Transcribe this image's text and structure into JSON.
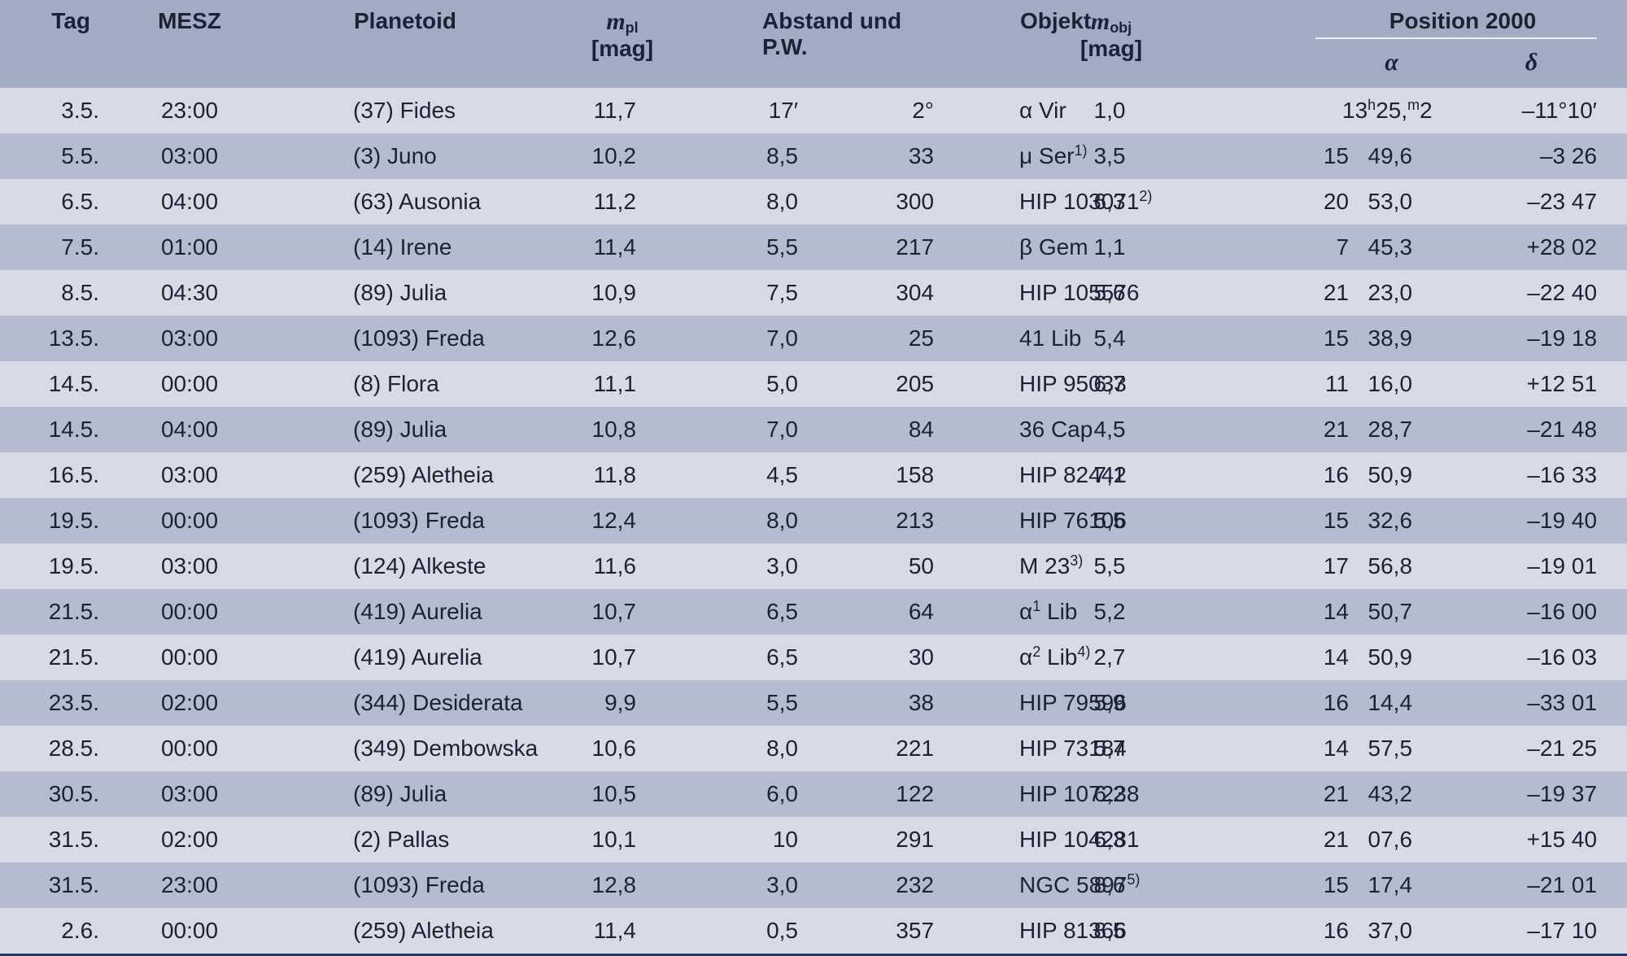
{
  "header": {
    "tag": "Tag",
    "mesz": "MESZ",
    "planetoid": "Planetoid",
    "m_pl_symbol": "m",
    "m_pl_sub": "pl",
    "m_pl_unit": "[mag]",
    "abstand": "Abstand und P.W.",
    "objekt": "Objekt",
    "m_obj_symbol": "m",
    "m_obj_sub": "obj",
    "m_obj_unit": "[mag]",
    "position": "Position 2000",
    "alpha": "α",
    "delta": "δ"
  },
  "rows": [
    {
      "tag": "3.5.",
      "mesz": "23:00",
      "planetoid": "(37) Fides",
      "m_pl": "11,7",
      "abstand": "17′",
      "pw": "2°",
      "objekt": "α Vir",
      "objekt_sup": "",
      "m_obj": "1,0",
      "ra_h": "13",
      "ra_m": "25,2",
      "ra_first": true,
      "dec": "–11°10′"
    },
    {
      "tag": "5.5.",
      "mesz": "03:00",
      "planetoid": "(3) Juno",
      "m_pl": "10,2",
      "abstand": "8,5",
      "pw": "33",
      "objekt": "μ Ser",
      "objekt_sup": "1)",
      "m_obj": "3,5",
      "ra_h": "15",
      "ra_m": "49,6",
      "dec": "–3 26"
    },
    {
      "tag": "6.5.",
      "mesz": "04:00",
      "planetoid": "(63) Ausonia",
      "m_pl": "11,2",
      "abstand": "8,0",
      "pw": "300",
      "objekt": "HIP 103071",
      "objekt_sup": "2)",
      "m_obj": "6,3",
      "ra_h": "20",
      "ra_m": "53,0",
      "dec": "–23 47"
    },
    {
      "tag": "7.5.",
      "mesz": "01:00",
      "planetoid": "(14) Irene",
      "m_pl": "11,4",
      "abstand": "5,5",
      "pw": "217",
      "objekt": "β Gem",
      "objekt_sup": "",
      "m_obj": "1,1",
      "ra_h": "7",
      "ra_m": "45,3",
      "dec": "+28 02"
    },
    {
      "tag": "8.5.",
      "mesz": "04:30",
      "planetoid": "(89) Julia",
      "m_pl": "10,9",
      "abstand": "7,5",
      "pw": "304",
      "objekt": "HIP 105576",
      "objekt_sup": "",
      "m_obj": "5,6",
      "ra_h": "21",
      "ra_m": "23,0",
      "dec": "–22 40"
    },
    {
      "tag": "13.5.",
      "mesz": "03:00",
      "planetoid": "(1093) Freda",
      "m_pl": "12,6",
      "abstand": "7,0",
      "pw": "25",
      "objekt": "41 Lib",
      "objekt_sup": "",
      "m_obj": "5,4",
      "ra_h": "15",
      "ra_m": "38,9",
      "dec": "–19 18"
    },
    {
      "tag": "14.5.",
      "mesz": "00:00",
      "planetoid": "(8) Flora",
      "m_pl": "11,1",
      "abstand": "5,0",
      "pw": "205",
      "objekt": "HIP 95033",
      "objekt_sup": "",
      "m_obj": "6,7",
      "ra_h": "11",
      "ra_m": "16,0",
      "dec": "+12 51"
    },
    {
      "tag": "14.5.",
      "mesz": "04:00",
      "planetoid": "(89) Julia",
      "m_pl": "10,8",
      "abstand": "7,0",
      "pw": "84",
      "objekt": "36 Cap",
      "objekt_sup": "",
      "m_obj": "4,5",
      "ra_h": "21",
      "ra_m": "28,7",
      "dec": "–21 48"
    },
    {
      "tag": "16.5.",
      "mesz": "03:00",
      "planetoid": "(259) Aletheia",
      "m_pl": "11,8",
      "abstand": "4,5",
      "pw": "158",
      "objekt": "HIP 82442",
      "objekt_sup": "",
      "m_obj": "7,1",
      "ra_h": "16",
      "ra_m": "50,9",
      "dec": "–16 33"
    },
    {
      "tag": "19.5.",
      "mesz": "00:00",
      "planetoid": "(1093) Freda",
      "m_pl": "12,4",
      "abstand": "8,0",
      "pw": "213",
      "objekt": "HIP 76106",
      "objekt_sup": "",
      "m_obj": "5,5",
      "ra_h": "15",
      "ra_m": "32,6",
      "dec": "–19 40"
    },
    {
      "tag": "19.5.",
      "mesz": "03:00",
      "planetoid": "(124) Alkeste",
      "m_pl": "11,6",
      "abstand": "3,0",
      "pw": "50",
      "objekt": "M 23",
      "objekt_sup": "3)",
      "m_obj": "5,5",
      "ra_h": "17",
      "ra_m": "56,8",
      "dec": "–19 01"
    },
    {
      "tag": "21.5.",
      "mesz": "00:00",
      "planetoid": "(419) Aurelia",
      "m_pl": "10,7",
      "abstand": "6,5",
      "pw": "64",
      "objekt_pre": "α",
      "objekt_pre_sup": "1",
      "objekt": " Lib",
      "objekt_sup": "",
      "m_obj": "5,2",
      "ra_h": "14",
      "ra_m": "50,7",
      "dec": "–16 00"
    },
    {
      "tag": "21.5.",
      "mesz": "00:00",
      "planetoid": "(419) Aurelia",
      "m_pl": "10,7",
      "abstand": "6,5",
      "pw": "30",
      "objekt_pre": "α",
      "objekt_pre_sup": "2",
      "objekt": " Lib",
      "objekt_sup": "4)",
      "m_obj": "2,7",
      "ra_h": "14",
      "ra_m": "50,9",
      "dec": "–16 03"
    },
    {
      "tag": "23.5.",
      "mesz": "02:00",
      "planetoid": "(344) Desiderata",
      "m_pl": "9,9",
      "abstand": "5,5",
      "pw": "38",
      "objekt": "HIP 79596",
      "objekt_sup": "",
      "m_obj": "5,9",
      "ra_h": "16",
      "ra_m": "14,4",
      "dec": "–33 01"
    },
    {
      "tag": "28.5.",
      "mesz": "00:00",
      "planetoid": "(349) Dembowska",
      "m_pl": "10,6",
      "abstand": "8,0",
      "pw": "221",
      "objekt": "HIP 73184",
      "objekt_sup": "",
      "m_obj": "5,7",
      "ra_h": "14",
      "ra_m": "57,5",
      "dec": "–21 25"
    },
    {
      "tag": "30.5.",
      "mesz": "03:00",
      "planetoid": "(89) Julia",
      "m_pl": "10,5",
      "abstand": "6,0",
      "pw": "122",
      "objekt": "HIP 107238",
      "objekt_sup": "",
      "m_obj": "6,2",
      "ra_h": "21",
      "ra_m": "43,2",
      "dec": "–19 37"
    },
    {
      "tag": "31.5.",
      "mesz": "02:00",
      "planetoid": "(2) Pallas",
      "m_pl": "10,1",
      "abstand": "10",
      "pw": "291",
      "objekt": "HIP 104281",
      "objekt_sup": "",
      "m_obj": "6,3",
      "ra_h": "21",
      "ra_m": "07,6",
      "dec": "+15 40"
    },
    {
      "tag": "31.5.",
      "mesz": "23:00",
      "planetoid": "(1093) Freda",
      "m_pl": "12,8",
      "abstand": "3,0",
      "pw": "232",
      "objekt": "NGC 5897",
      "objekt_sup": "5)",
      "m_obj": "8,6",
      "ra_h": "15",
      "ra_m": "17,4",
      "dec": "–21 01"
    },
    {
      "tag": "2.6.",
      "mesz": "00:00",
      "planetoid": "(259) Aletheia",
      "m_pl": "11,4",
      "abstand": "0,5",
      "pw": "357",
      "objekt": "HIP 81366",
      "objekt_sup": "",
      "m_obj": "8,5",
      "ra_h": "16",
      "ra_m": "37,0",
      "dec": "–17 10"
    }
  ],
  "colors": {
    "header_bg": "#a1acc3",
    "row_light": "#d7dbe6",
    "row_dark": "#b4bdd0",
    "bottom_rule": "#1f3a68"
  }
}
